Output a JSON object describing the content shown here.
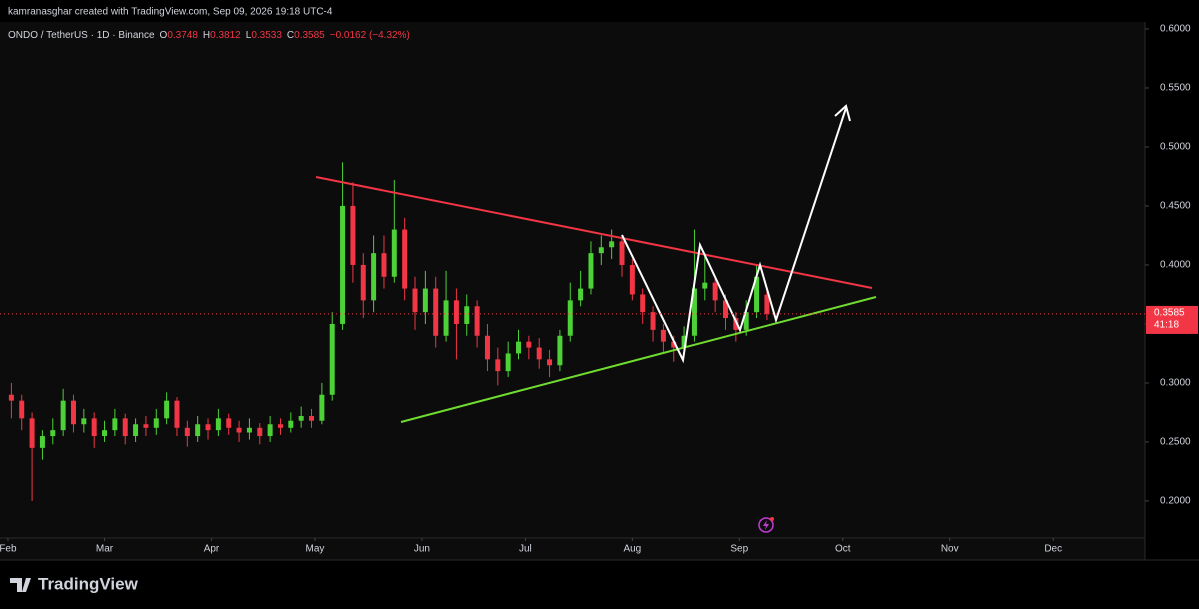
{
  "header": {
    "credit": "kamranasghar created with TradingView.com, Sep 09, 2026 19:18 UTC-4"
  },
  "footer": {
    "brand": "TradingView"
  },
  "chart_data": {
    "type": "candlestick",
    "legend": {
      "symbol": "ONDO / TetherUS · 1D · Binance",
      "ohlc_labels": [
        "O",
        "H",
        "L",
        "C"
      ],
      "change": "−0.0162 (−4.32%)"
    },
    "countdown": "41:18",
    "up_color": "#4cd137",
    "down_color": "#f23645",
    "x": [
      1,
      4,
      7,
      10,
      13,
      16,
      19,
      22,
      25,
      28,
      31,
      34,
      37,
      40,
      43,
      46,
      49,
      52,
      55,
      58,
      61,
      64,
      67,
      70,
      73,
      76,
      79,
      82,
      85,
      88,
      91,
      94,
      97,
      100,
      103,
      106,
      109,
      112,
      115,
      118,
      121,
      124,
      127,
      130,
      133,
      136,
      139,
      142,
      145,
      148,
      151,
      154,
      157,
      160,
      163,
      166,
      169,
      172,
      175,
      178,
      181,
      184,
      187,
      190,
      193,
      196,
      199,
      202,
      205,
      208,
      211,
      214,
      217,
      220
    ],
    "open": [
      0.29,
      0.285,
      0.27,
      0.245,
      0.255,
      0.26,
      0.285,
      0.265,
      0.27,
      0.255,
      0.26,
      0.27,
      0.255,
      0.265,
      0.262,
      0.27,
      0.285,
      0.262,
      0.255,
      0.265,
      0.26,
      0.27,
      0.262,
      0.258,
      0.262,
      0.255,
      0.265,
      0.262,
      0.268,
      0.272,
      0.268,
      0.29,
      0.35,
      0.45,
      0.4,
      0.37,
      0.41,
      0.39,
      0.43,
      0.38,
      0.36,
      0.38,
      0.34,
      0.37,
      0.35,
      0.365,
      0.34,
      0.32,
      0.31,
      0.325,
      0.335,
      0.33,
      0.32,
      0.315,
      0.34,
      0.37,
      0.38,
      0.41,
      0.415,
      0.42,
      0.4,
      0.375,
      0.36,
      0.345,
      0.335,
      0.33,
      0.34,
      0.38,
      0.385,
      0.37,
      0.355,
      0.345,
      0.36,
      0.3748
    ],
    "high": [
      0.3,
      0.29,
      0.275,
      0.26,
      0.27,
      0.295,
      0.29,
      0.278,
      0.275,
      0.268,
      0.278,
      0.274,
      0.27,
      0.272,
      0.278,
      0.292,
      0.288,
      0.268,
      0.272,
      0.27,
      0.278,
      0.274,
      0.268,
      0.27,
      0.266,
      0.272,
      0.27,
      0.275,
      0.28,
      0.278,
      0.3,
      0.36,
      0.487,
      0.47,
      0.41,
      0.425,
      0.425,
      0.472,
      0.44,
      0.39,
      0.395,
      0.39,
      0.395,
      0.38,
      0.375,
      0.37,
      0.35,
      0.33,
      0.335,
      0.345,
      0.34,
      0.338,
      0.328,
      0.345,
      0.385,
      0.395,
      0.42,
      0.425,
      0.43,
      0.425,
      0.405,
      0.38,
      0.365,
      0.35,
      0.34,
      0.348,
      0.43,
      0.41,
      0.39,
      0.375,
      0.36,
      0.37,
      0.4,
      0.3812
    ],
    "low": [
      0.27,
      0.26,
      0.2,
      0.235,
      0.248,
      0.255,
      0.258,
      0.258,
      0.245,
      0.25,
      0.255,
      0.248,
      0.25,
      0.255,
      0.256,
      0.265,
      0.255,
      0.246,
      0.25,
      0.252,
      0.255,
      0.256,
      0.25,
      0.252,
      0.248,
      0.25,
      0.256,
      0.258,
      0.262,
      0.262,
      0.265,
      0.285,
      0.345,
      0.385,
      0.355,
      0.36,
      0.38,
      0.385,
      0.37,
      0.345,
      0.35,
      0.33,
      0.335,
      0.32,
      0.34,
      0.33,
      0.31,
      0.298,
      0.305,
      0.32,
      0.32,
      0.312,
      0.305,
      0.31,
      0.335,
      0.365,
      0.375,
      0.4,
      0.405,
      0.39,
      0.37,
      0.35,
      0.335,
      0.325,
      0.318,
      0.325,
      0.335,
      0.37,
      0.36,
      0.345,
      0.335,
      0.34,
      0.355,
      0.3533
    ],
    "close": [
      0.285,
      0.27,
      0.245,
      0.255,
      0.26,
      0.285,
      0.265,
      0.27,
      0.255,
      0.26,
      0.27,
      0.255,
      0.265,
      0.262,
      0.27,
      0.285,
      0.262,
      0.255,
      0.265,
      0.26,
      0.27,
      0.262,
      0.258,
      0.262,
      0.255,
      0.265,
      0.262,
      0.268,
      0.272,
      0.268,
      0.29,
      0.35,
      0.45,
      0.4,
      0.37,
      0.41,
      0.39,
      0.43,
      0.38,
      0.36,
      0.38,
      0.34,
      0.37,
      0.35,
      0.365,
      0.34,
      0.32,
      0.31,
      0.325,
      0.335,
      0.33,
      0.32,
      0.315,
      0.34,
      0.37,
      0.38,
      0.41,
      0.415,
      0.42,
      0.4,
      0.375,
      0.36,
      0.345,
      0.335,
      0.33,
      0.34,
      0.38,
      0.385,
      0.37,
      0.355,
      0.345,
      0.36,
      0.39,
      0.3585
    ],
    "xlim": [
      -2.3,
      329.6
    ],
    "xticks": [
      {
        "value": 0,
        "label": "Feb"
      },
      {
        "value": 28,
        "label": "Mar"
      },
      {
        "value": 59,
        "label": "Apr"
      },
      {
        "value": 89,
        "label": "May"
      },
      {
        "value": 120,
        "label": "Jun"
      },
      {
        "value": 150,
        "label": "Jul"
      },
      {
        "value": 181,
        "label": "Aug"
      },
      {
        "value": 212,
        "label": "Sep"
      },
      {
        "value": 242,
        "label": "Oct"
      },
      {
        "value": 273,
        "label": "Nov"
      },
      {
        "value": 303,
        "label": "Dec"
      }
    ],
    "ylim": [
      0.1686,
      0.6059
    ],
    "yticks": [
      {
        "value": 0.2,
        "label": "0.2000"
      },
      {
        "value": 0.25,
        "label": "0.2500"
      },
      {
        "value": 0.3,
        "label": "0.3000"
      },
      {
        "value": 0.35,
        "label": "0.3500"
      },
      {
        "value": 0.4,
        "label": "0.4000"
      },
      {
        "value": 0.45,
        "label": "0.4500"
      },
      {
        "value": 0.5,
        "label": "0.5000"
      },
      {
        "value": 0.55,
        "label": "0.5500"
      },
      {
        "value": 0.6,
        "label": "0.6000"
      }
    ]
  }
}
